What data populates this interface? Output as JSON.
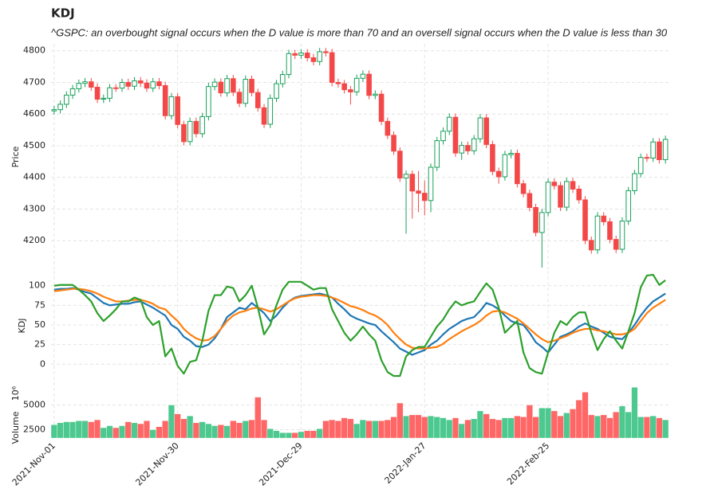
{
  "chart_data": [
    {
      "type": "candlestick",
      "title": "KDJ",
      "subtitle": "^GSPC: an overbought signal occurs when the D value is more than 70 and an oversell signal occurs when the D value is less than 30",
      "ylabel": "Price",
      "up_color": "#18a05a",
      "down_color": "#f44848",
      "grid": true,
      "ylim": [
        4110,
        4822
      ],
      "yticks": [
        4200,
        4300,
        4400,
        4500,
        4600,
        4700,
        4800
      ],
      "open": [
        4610,
        4614,
        4631,
        4660,
        4680,
        4697,
        4702,
        4685,
        4647,
        4650,
        4683,
        4682,
        4700,
        4688,
        4705,
        4698,
        4682,
        4702,
        4690,
        4595,
        4655,
        4567,
        4513,
        4577,
        4538,
        4592,
        4687,
        4701,
        4667,
        4712,
        4669,
        4634,
        4710,
        4668,
        4620,
        4568,
        4650,
        4696,
        4725,
        4791,
        4786,
        4793,
        4778,
        4766,
        4797,
        4794,
        4700,
        4696,
        4677,
        4670,
        4713,
        4726,
        4659,
        4663,
        4577,
        4533,
        4483,
        4398,
        4410,
        4357,
        4350,
        4327,
        4432,
        4516,
        4546,
        4590,
        4477,
        4501,
        4484,
        4522,
        4588,
        4504,
        4419,
        4402,
        4472,
        4476,
        4380,
        4349,
        4305,
        4226,
        4289,
        4385,
        4374,
        4306,
        4387,
        4363,
        4329,
        4201,
        4171,
        4278,
        4260,
        4204,
        4173,
        4262,
        4358,
        4412,
        4463,
        4461,
        4512,
        4456
      ],
      "high": [
        4626,
        4643,
        4672,
        4692,
        4709,
        4714,
        4714,
        4697,
        4662,
        4695,
        4695,
        4712,
        4712,
        4717,
        4717,
        4710,
        4714,
        4714,
        4702,
        4667,
        4667,
        4579,
        4589,
        4589,
        4604,
        4699,
        4713,
        4713,
        4724,
        4724,
        4681,
        4722,
        4722,
        4680,
        4632,
        4662,
        4708,
        4737,
        4803,
        4803,
        4805,
        4805,
        4790,
        4809,
        4809,
        4806,
        4712,
        4708,
        4689,
        4725,
        4738,
        4738,
        4675,
        4675,
        4589,
        4545,
        4495,
        4422,
        4422,
        4420,
        4390,
        4444,
        4528,
        4558,
        4602,
        4602,
        4513,
        4513,
        4534,
        4600,
        4600,
        4516,
        4431,
        4484,
        4488,
        4488,
        4392,
        4361,
        4317,
        4301,
        4397,
        4397,
        4386,
        4399,
        4399,
        4375,
        4341,
        4213,
        4290,
        4290,
        4272,
        4216,
        4274,
        4370,
        4424,
        4475,
        4475,
        4524,
        4524,
        4532
      ],
      "low": [
        4598,
        4602,
        4619,
        4648,
        4668,
        4685,
        4673,
        4635,
        4635,
        4638,
        4670,
        4670,
        4676,
        4676,
        4686,
        4670,
        4670,
        4678,
        4583,
        4583,
        4555,
        4501,
        4501,
        4526,
        4526,
        4580,
        4675,
        4655,
        4655,
        4657,
        4622,
        4622,
        4656,
        4608,
        4556,
        4556,
        4638,
        4684,
        4713,
        4774,
        4774,
        4766,
        4754,
        4754,
        4782,
        4688,
        4684,
        4665,
        4630,
        4658,
        4701,
        4647,
        4647,
        4565,
        4521,
        4471,
        4386,
        4222,
        4270,
        4290,
        4280,
        4290,
        4420,
        4504,
        4534,
        4465,
        4455,
        4472,
        4472,
        4510,
        4492,
        4407,
        4380,
        4390,
        4460,
        4368,
        4337,
        4293,
        4214,
        4115,
        4277,
        4362,
        4294,
        4294,
        4351,
        4317,
        4189,
        4159,
        4159,
        4248,
        4192,
        4161,
        4161,
        4250,
        4346,
        4400,
        4449,
        4449,
        4444,
        4444
      ],
      "close": [
        4614,
        4631,
        4660,
        4680,
        4697,
        4702,
        4685,
        4647,
        4650,
        4683,
        4682,
        4700,
        4688,
        4705,
        4698,
        4682,
        4702,
        4690,
        4595,
        4655,
        4567,
        4513,
        4577,
        4538,
        4592,
        4687,
        4701,
        4667,
        4712,
        4669,
        4634,
        4710,
        4668,
        4620,
        4568,
        4650,
        4696,
        4725,
        4791,
        4786,
        4793,
        4778,
        4766,
        4797,
        4794,
        4700,
        4696,
        4677,
        4670,
        4713,
        4726,
        4659,
        4663,
        4577,
        4533,
        4483,
        4398,
        4410,
        4357,
        4350,
        4327,
        4432,
        4516,
        4546,
        4590,
        4477,
        4501,
        4484,
        4522,
        4588,
        4504,
        4419,
        4402,
        4472,
        4476,
        4380,
        4349,
        4305,
        4226,
        4289,
        4385,
        4374,
        4306,
        4387,
        4363,
        4329,
        4201,
        4171,
        4278,
        4260,
        4204,
        4173,
        4262,
        4358,
        4412,
        4463,
        4461,
        4512,
        4456,
        4520
      ]
    },
    {
      "type": "line",
      "ylabel": "KDJ",
      "grid": true,
      "ylim": [
        -21,
        119
      ],
      "yticks": [
        0,
        25,
        50,
        75,
        100
      ],
      "series": [
        {
          "color": "#1f77b4",
          "values": [
            95,
            96,
            96,
            97,
            95,
            92,
            90,
            84,
            78,
            75,
            76,
            77,
            77,
            79,
            80,
            76,
            72,
            67,
            62,
            50,
            45,
            35,
            30,
            23,
            22,
            25,
            33,
            45,
            60,
            66,
            72,
            70,
            78,
            72,
            65,
            55,
            62,
            72,
            80,
            85,
            87,
            88,
            89,
            90,
            88,
            85,
            77,
            70,
            62,
            58,
            55,
            52,
            50,
            42,
            35,
            28,
            20,
            16,
            12,
            15,
            18,
            25,
            30,
            38,
            45,
            50,
            55,
            58,
            60,
            68,
            78,
            75,
            70,
            62,
            55,
            52,
            50,
            40,
            28,
            22,
            15,
            25,
            35,
            38,
            42,
            48,
            52,
            48,
            45,
            40,
            35,
            33,
            32,
            40,
            50,
            62,
            72,
            80,
            85,
            90
          ]
        },
        {
          "color": "#ff7f0e",
          "values": [
            93,
            94,
            95,
            96,
            96,
            95,
            93,
            90,
            86,
            83,
            80,
            80,
            81,
            82,
            82,
            80,
            77,
            72,
            70,
            62,
            55,
            45,
            38,
            33,
            30,
            31,
            36,
            45,
            55,
            62,
            66,
            68,
            71,
            72,
            70,
            67,
            70,
            75,
            80,
            84,
            86,
            87,
            88,
            88,
            87,
            85,
            82,
            78,
            74,
            72,
            69,
            65,
            62,
            57,
            50,
            40,
            32,
            25,
            21,
            20,
            20,
            21,
            22,
            26,
            32,
            37,
            42,
            46,
            50,
            55,
            62,
            67,
            68,
            66,
            62,
            58,
            52,
            45,
            38,
            32,
            28,
            30,
            33,
            36,
            40,
            43,
            45,
            45,
            43,
            42,
            40,
            38,
            38,
            40,
            45,
            55,
            65,
            72,
            77,
            82
          ]
        },
        {
          "color": "#2ca02c",
          "values": [
            100,
            101,
            101,
            101,
            95,
            88,
            80,
            65,
            55,
            62,
            70,
            80,
            80,
            85,
            82,
            60,
            50,
            55,
            10,
            20,
            -2,
            -12,
            3,
            5,
            30,
            68,
            88,
            88,
            99,
            97,
            80,
            88,
            100,
            72,
            38,
            50,
            75,
            95,
            105,
            105,
            105,
            100,
            95,
            97,
            97,
            70,
            55,
            40,
            30,
            38,
            48,
            38,
            30,
            5,
            -10,
            -15,
            -15,
            10,
            18,
            22,
            22,
            35,
            48,
            57,
            70,
            80,
            75,
            78,
            80,
            92,
            103,
            95,
            72,
            40,
            48,
            55,
            15,
            -5,
            -10,
            -12,
            15,
            40,
            55,
            50,
            60,
            66,
            66,
            40,
            18,
            32,
            42,
            30,
            20,
            42,
            65,
            98,
            113,
            114,
            101,
            107
          ]
        }
      ]
    },
    {
      "type": "bar",
      "ylabel": "Volume",
      "multiplier": "10⁶",
      "grid": true,
      "up_color": "#4dc98f",
      "down_color": "#ff6666",
      "ylim": [
        1650,
        7300
      ],
      "yticks": [
        2500,
        5000
      ],
      "categories": [
        "2021-Nov-01",
        null,
        null,
        null,
        null,
        null,
        null,
        null,
        null,
        null,
        null,
        null,
        null,
        null,
        null,
        null,
        null,
        null,
        null,
        null,
        "2021-Nov-30",
        null,
        null,
        null,
        null,
        null,
        null,
        null,
        null,
        null,
        null,
        null,
        null,
        null,
        null,
        null,
        null,
        null,
        null,
        null,
        "2021-Dec-29",
        null,
        null,
        null,
        null,
        null,
        null,
        null,
        null,
        null,
        null,
        null,
        null,
        null,
        null,
        null,
        null,
        null,
        null,
        null,
        "2022-Jan-27",
        null,
        null,
        null,
        null,
        null,
        null,
        null,
        null,
        null,
        null,
        null,
        null,
        null,
        null,
        null,
        null,
        null,
        null,
        null,
        "2022-Feb-25",
        null,
        null,
        null,
        null,
        null,
        null,
        null,
        null,
        null,
        null,
        null,
        null,
        null,
        null,
        null,
        null,
        null,
        null,
        null
      ],
      "values": [
        3000,
        3200,
        3300,
        3300,
        3400,
        3400,
        3300,
        3500,
        2700,
        2900,
        2700,
        2900,
        3300,
        3200,
        3100,
        3400,
        2500,
        2800,
        3400,
        5000,
        4100,
        3600,
        3900,
        3200,
        3300,
        3100,
        2900,
        3000,
        2900,
        3400,
        3200,
        3400,
        3500,
        5800,
        3500,
        2600,
        2400,
        2200,
        2200,
        2200,
        2300,
        2400,
        2400,
        2600,
        3400,
        3500,
        3400,
        3700,
        3600,
        3100,
        3500,
        3400,
        3400,
        3400,
        3500,
        3800,
        5200,
        3900,
        4000,
        4000,
        3800,
        3900,
        3800,
        3700,
        3500,
        3700,
        3100,
        3500,
        3600,
        4400,
        4100,
        3600,
        3500,
        3700,
        3700,
        3900,
        3800,
        5000,
        3800,
        4700,
        4700,
        4400,
        3900,
        4200,
        4600,
        5500,
        6300,
        4000,
        3900,
        4000,
        3700,
        4300,
        4900,
        4300,
        6800,
        3800,
        3800,
        3900,
        3700,
        3500
      ]
    }
  ]
}
